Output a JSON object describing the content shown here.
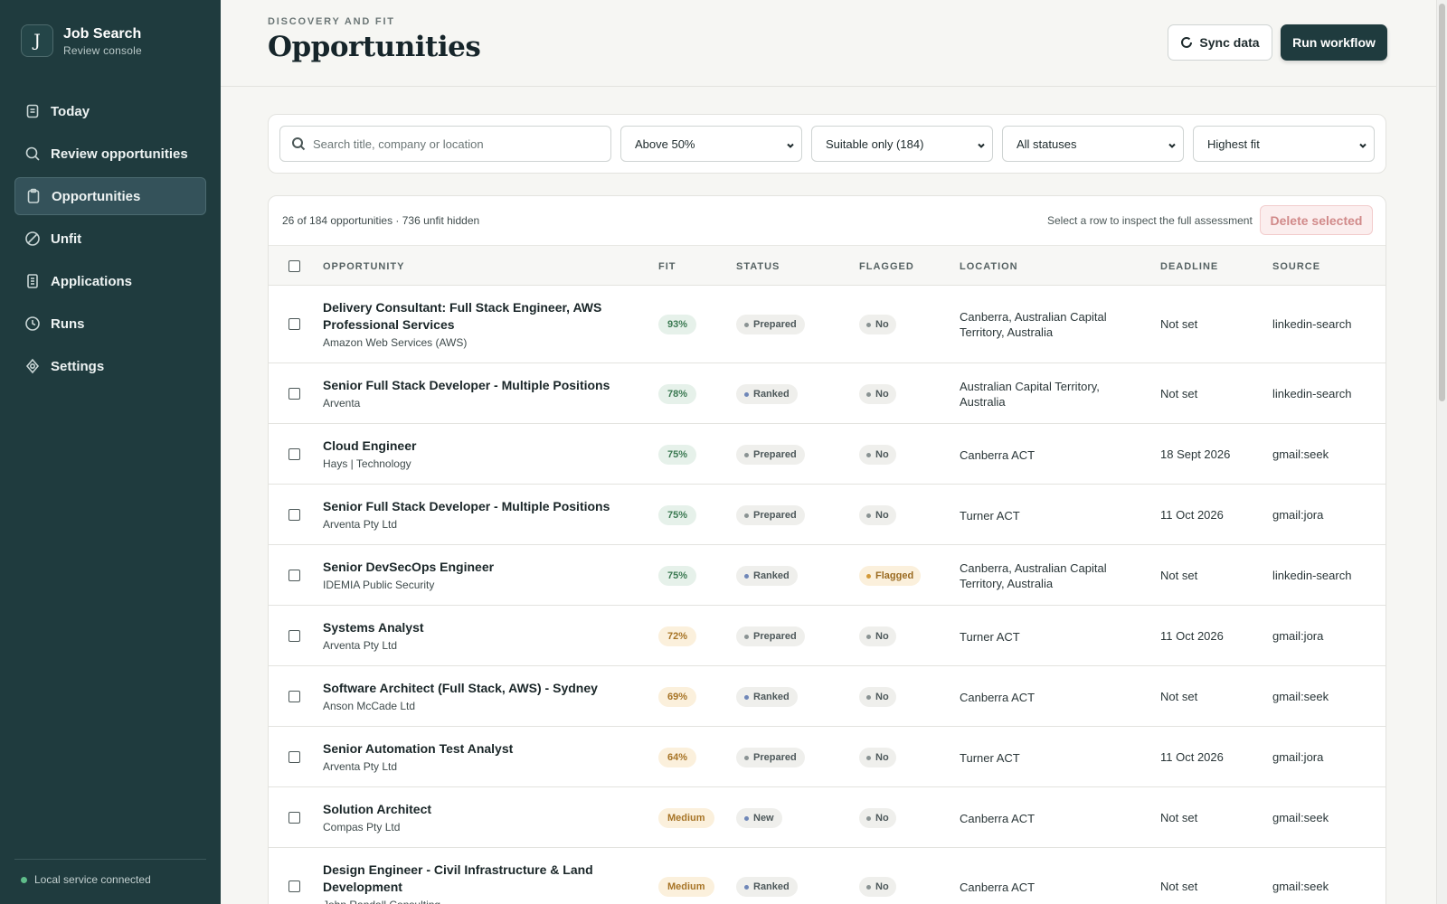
{
  "brand": {
    "initial": "J",
    "title": "Job Search",
    "subtitle": "Review console"
  },
  "nav": [
    {
      "label": "Today",
      "icon": "calendar-icon"
    },
    {
      "label": "Review opportunities",
      "icon": "search-icon"
    },
    {
      "label": "Opportunities",
      "icon": "clipboard-icon",
      "active": true
    },
    {
      "label": "Unfit",
      "icon": "block-icon"
    },
    {
      "label": "Applications",
      "icon": "document-icon"
    },
    {
      "label": "Runs",
      "icon": "clock-icon"
    },
    {
      "label": "Settings",
      "icon": "gear-icon"
    }
  ],
  "footer": {
    "status": "Local service connected"
  },
  "header": {
    "eyebrow": "DISCOVERY AND FIT",
    "title": "Opportunities",
    "sync_label": "Sync data",
    "run_label": "Run workflow"
  },
  "filters": {
    "search_placeholder": "Search title, company or location",
    "fit_threshold": "Above 50%",
    "suitability": "Suitable only (184)",
    "status": "All statuses",
    "sort": "Highest fit"
  },
  "table": {
    "count_text": "26 of 184 opportunities · 736 unfit hidden",
    "hint": "Select a row to inspect the full assessment",
    "delete_label": "Delete selected",
    "columns": {
      "opportunity": "OPPORTUNITY",
      "fit": "FIT",
      "status": "STATUS",
      "flagged": "FLAGGED",
      "location": "LOCATION",
      "deadline": "DEADLINE",
      "source": "SOURCE"
    },
    "rows": [
      {
        "title": "Delivery Consultant: Full Stack Engineer, AWS Professional Services",
        "company": "Amazon Web Services (AWS)",
        "fit": "93%",
        "fit_tone": "green",
        "status": "Prepared",
        "flagged": "No",
        "location": "Canberra, Australian Capital Territory, Australia",
        "deadline": "Not set",
        "source": "linkedin-search"
      },
      {
        "title": "Senior Full Stack Developer - Multiple Positions",
        "company": "Arventa",
        "fit": "78%",
        "fit_tone": "green",
        "status": "Ranked",
        "flagged": "No",
        "location": "Australian Capital Territory, Australia",
        "deadline": "Not set",
        "source": "linkedin-search"
      },
      {
        "title": "Cloud Engineer",
        "company": "Hays | Technology",
        "fit": "75%",
        "fit_tone": "green",
        "status": "Prepared",
        "flagged": "No",
        "location": "Canberra ACT",
        "deadline": "18 Sept 2026",
        "source": "gmail:seek"
      },
      {
        "title": "Senior Full Stack Developer - Multiple Positions",
        "company": "Arventa Pty Ltd",
        "fit": "75%",
        "fit_tone": "green",
        "status": "Prepared",
        "flagged": "No",
        "location": "Turner ACT",
        "deadline": "11 Oct 2026",
        "source": "gmail:jora"
      },
      {
        "title": "Senior DevSecOps Engineer",
        "company": "IDEMIA Public Security",
        "fit": "75%",
        "fit_tone": "green",
        "status": "Ranked",
        "flagged": "Flagged",
        "location": "Canberra, Australian Capital Territory, Australia",
        "deadline": "Not set",
        "source": "linkedin-search"
      },
      {
        "title": "Systems Analyst",
        "company": "Arventa Pty Ltd",
        "fit": "72%",
        "fit_tone": "amber",
        "status": "Prepared",
        "flagged": "No",
        "location": "Turner ACT",
        "deadline": "11 Oct 2026",
        "source": "gmail:jora"
      },
      {
        "title": "Software Architect (Full Stack, AWS) - Sydney",
        "company": "Anson McCade Ltd",
        "fit": "69%",
        "fit_tone": "amber",
        "status": "Ranked",
        "flagged": "No",
        "location": "Canberra ACT",
        "deadline": "Not set",
        "source": "gmail:seek"
      },
      {
        "title": "Senior Automation Test Analyst",
        "company": "Arventa Pty Ltd",
        "fit": "64%",
        "fit_tone": "amber",
        "status": "Prepared",
        "flagged": "No",
        "location": "Turner ACT",
        "deadline": "11 Oct 2026",
        "source": "gmail:jora"
      },
      {
        "title": "Solution Architect",
        "company": "Compas Pty Ltd",
        "fit": "Medium",
        "fit_tone": "amber",
        "status": "New",
        "flagged": "No",
        "location": "Canberra ACT",
        "deadline": "Not set",
        "source": "gmail:seek"
      },
      {
        "title": "Design Engineer - Civil Infrastructure & Land Development",
        "company": "John Randall Consulting",
        "fit": "Medium",
        "fit_tone": "amber",
        "status": "Ranked",
        "flagged": "No",
        "location": "Canberra ACT",
        "deadline": "Not set",
        "source": "gmail:seek"
      }
    ]
  },
  "colors": {
    "sidebar": "#1f3b3e",
    "accent": "#1f3b3e",
    "fit_green": "#3c7a53",
    "fit_amber": "#a77426",
    "danger": "#d18a8a"
  }
}
